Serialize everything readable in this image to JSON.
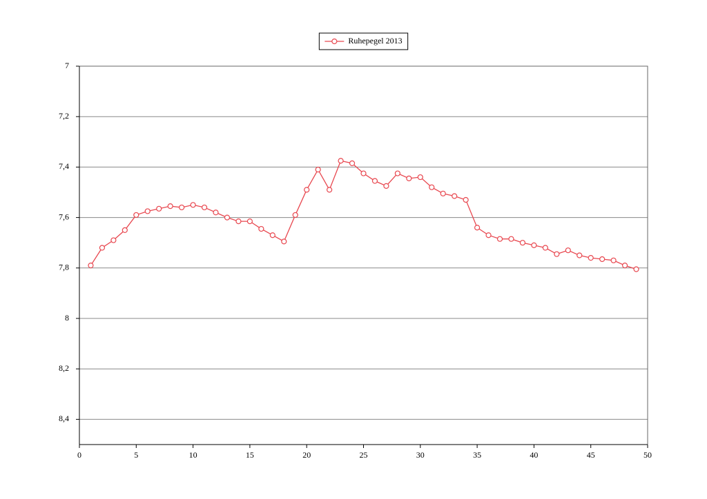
{
  "chart_data": {
    "type": "line",
    "x": [
      1,
      2,
      3,
      4,
      5,
      6,
      7,
      8,
      9,
      10,
      11,
      12,
      13,
      14,
      15,
      16,
      17,
      18,
      19,
      20,
      21,
      22,
      23,
      24,
      25,
      26,
      27,
      28,
      29,
      30,
      31,
      32,
      33,
      34,
      35,
      36,
      37,
      38,
      39,
      40,
      41,
      42,
      43,
      44,
      45,
      46,
      47,
      48,
      49
    ],
    "series": [
      {
        "name": "Ruhepegel 2013",
        "color": "#e8474f",
        "values": [
          7.79,
          7.72,
          7.69,
          7.65,
          7.59,
          7.575,
          7.565,
          7.555,
          7.56,
          7.55,
          7.56,
          7.58,
          7.6,
          7.615,
          7.615,
          7.645,
          7.67,
          7.695,
          7.59,
          7.49,
          7.41,
          7.49,
          7.375,
          7.385,
          7.425,
          7.455,
          7.475,
          7.425,
          7.445,
          7.44,
          7.48,
          7.505,
          7.515,
          7.53,
          7.64,
          7.67,
          7.685,
          7.685,
          7.7,
          7.71,
          7.72,
          7.745,
          7.73,
          7.75,
          7.76,
          7.765,
          7.77,
          7.79,
          7.805
        ]
      }
    ],
    "xlim": [
      0,
      50
    ],
    "xticks": [
      0,
      5,
      10,
      15,
      20,
      25,
      30,
      35,
      40,
      45,
      50
    ],
    "ylim": [
      8.5,
      7
    ],
    "yticks": [
      7,
      {
        "value": 7.2,
        "label": "7,2"
      },
      {
        "value": 7.4,
        "label": "7,4"
      },
      {
        "value": 7.6,
        "label": "7,6"
      },
      {
        "value": 7.8,
        "label": "7,8"
      },
      8,
      {
        "value": 8.2,
        "label": "8,2"
      },
      {
        "value": 8.4,
        "label": "8,4"
      }
    ],
    "grid": true,
    "legend": "top"
  }
}
